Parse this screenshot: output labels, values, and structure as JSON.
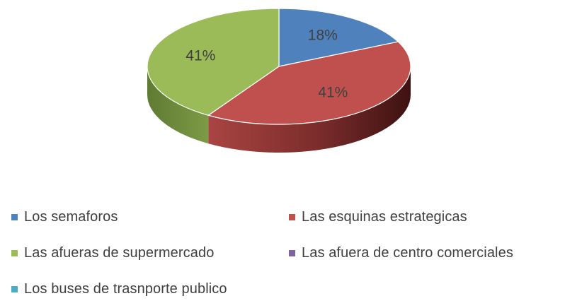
{
  "chart_data": {
    "type": "pie",
    "style": "3d-pie",
    "title": "",
    "categories": [
      "Los semaforos",
      "Las esquinas estrategicas",
      "Las afueras de supermercado",
      "Las afuera de centro comerciales",
      "Los buses de trasnporte publico"
    ],
    "values": [
      18,
      41,
      41,
      0,
      0
    ],
    "data_labels": [
      "18%",
      "41%",
      "41%",
      "",
      ""
    ],
    "colors": [
      "#4F81BD",
      "#C0504D",
      "#9BBB59",
      "#8064A2",
      "#4BACC6"
    ],
    "legend_position": "bottom"
  }
}
